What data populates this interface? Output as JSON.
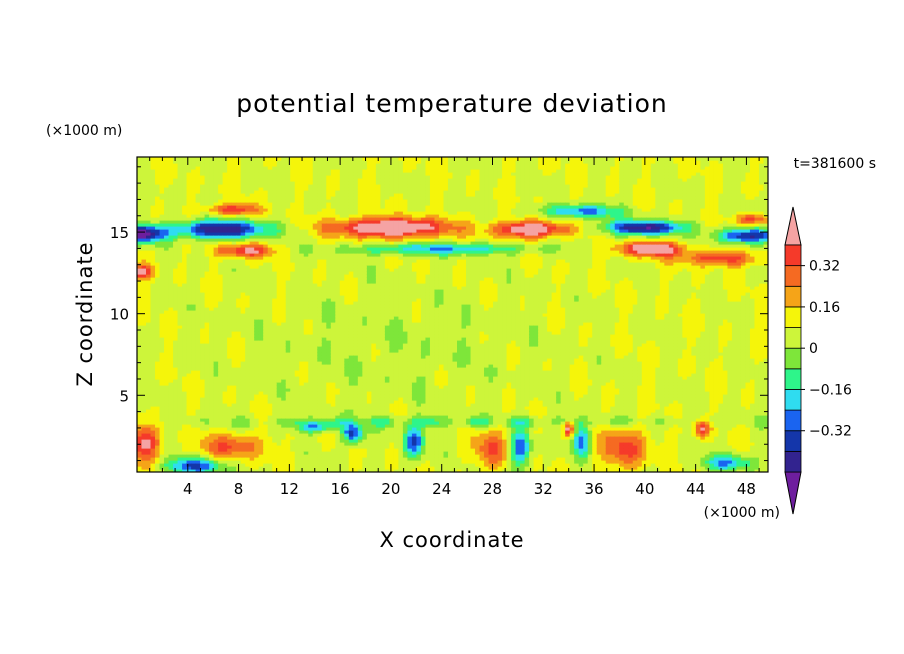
{
  "chart_data": {
    "type": "heatmap",
    "title": "potential temperature deviation",
    "xlabel": "X coordinate",
    "ylabel": "Z coordinate",
    "x_unit": "(×1000 m)",
    "y_unit": "(×1000 m)",
    "time_label": "t=381600 s",
    "xlim": [
      0,
      49.7
    ],
    "ylim": [
      0.3,
      19.6
    ],
    "xticks": [
      4,
      8,
      12,
      16,
      20,
      24,
      28,
      32,
      36,
      40,
      44,
      48
    ],
    "yticks": [
      5,
      10,
      15
    ],
    "colorbar": {
      "levels": [
        -0.48,
        -0.4,
        -0.32,
        -0.24,
        -0.16,
        -0.08,
        0,
        0.08,
        0.16,
        0.24,
        0.32,
        0.4
      ],
      "colors": [
        "#6e1e9e",
        "#32238f",
        "#1436aa",
        "#1a64f0",
        "#2fdcf0",
        "#2ef58a",
        "#7ee63a",
        "#cdf53a",
        "#f5f50a",
        "#f5a418",
        "#f56a22",
        "#f53a2a",
        "#f5a3a3"
      ],
      "tick_labels": [
        "0.32",
        "0.16",
        "0",
        "−0.16",
        "−0.32"
      ],
      "tick_values": [
        0.32,
        0.16,
        0,
        -0.16,
        -0.32
      ]
    },
    "features": [
      {
        "name": "upper-negative-band-west",
        "x": [
          3,
          10.5
        ],
        "z": [
          14.6,
          15.8
        ],
        "value": -0.45
      },
      {
        "name": "upper-negative-band-east",
        "x": [
          37,
          42
        ],
        "z": [
          14.8,
          15.6
        ],
        "value": -0.45
      },
      {
        "name": "upper-positive-band-center",
        "x": [
          15,
          25
        ],
        "z": [
          14.6,
          16.0
        ],
        "value": 0.42
      },
      {
        "name": "upper-positive-band-east",
        "x": [
          29,
          34
        ],
        "z": [
          14.8,
          15.8
        ],
        "value": 0.42
      },
      {
        "name": "lower-positive-band-east",
        "x": [
          38,
          43
        ],
        "z": [
          13.6,
          14.6
        ],
        "value": 0.42
      },
      {
        "name": "near-surface-negative-west",
        "x": [
          2,
          8
        ],
        "z": [
          0.4,
          1.3
        ],
        "value": -0.35
      },
      {
        "name": "near-surface-positive-west",
        "x": [
          0,
          2
        ],
        "z": [
          1.0,
          3.2
        ],
        "value": 0.32
      }
    ]
  }
}
